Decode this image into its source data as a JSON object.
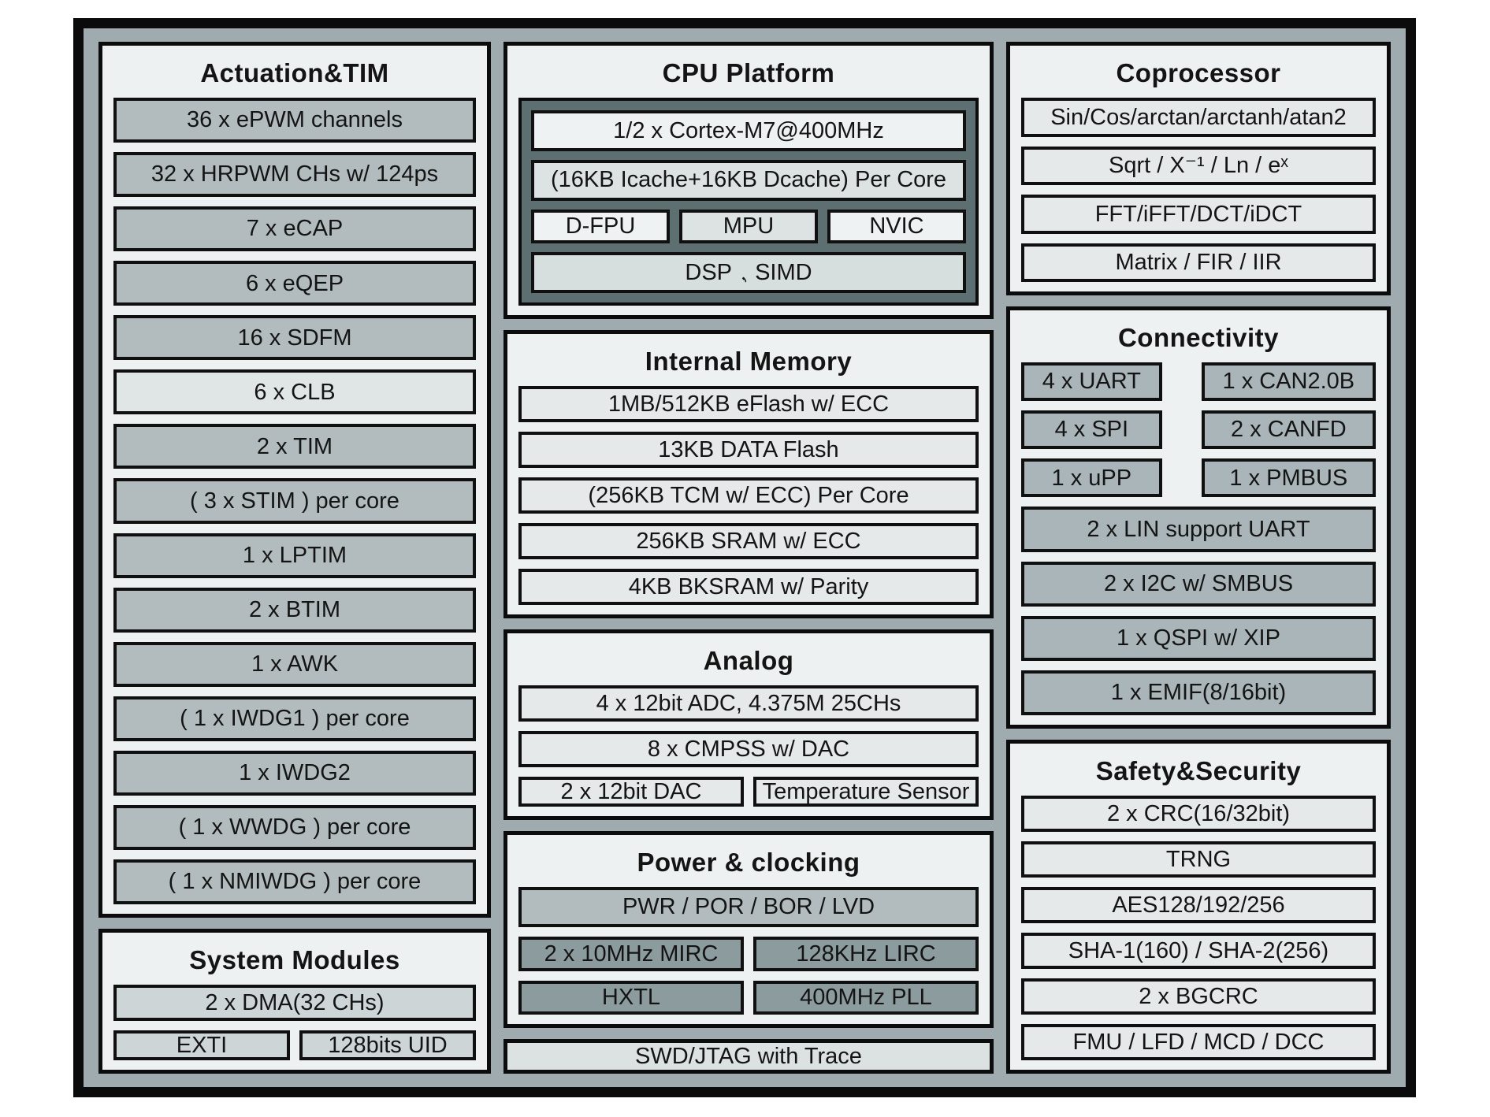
{
  "palette": {
    "chip_frame": "#0b0b0b",
    "chip_band": "#9fabae",
    "section_bg": "#eef1f1",
    "box_medium": "#b2bcbf",
    "box_medium2": "#a9b5b8",
    "box_dark": "#8c9b9e",
    "box_light": "#e5e9e9",
    "box_lighter": "#e0e6e6",
    "box_system": "#cdd5d6",
    "cpu_inner_bg": "#5d6f71",
    "box_bright": "#eff2f2",
    "box_cpulight": "#dde3e3",
    "box_dsp": "#d7dede",
    "box_swd": "#dce1e1",
    "ink": "#141414"
  },
  "sections": {
    "actuation": {
      "title": "Actuation&TIM",
      "items": [
        "36 x ePWM channels",
        "32 x HRPWM CHs w/ 124ps",
        "7 x eCAP",
        "6 x eQEP",
        "16 x SDFM",
        "6 x CLB",
        "2 x TIM",
        "( 3 x STIM ) per core",
        "1 x LPTIM",
        "2 x BTIM",
        "1 x AWK",
        "( 1 x IWDG1 ) per core",
        "1 x IWDG2",
        "( 1 x WWDG ) per core",
        "( 1 x NMIWDG ) per core"
      ]
    },
    "system_modules": {
      "title": "System Modules",
      "dma": "2 x DMA(32 CHs)",
      "exti": "EXTI",
      "uid": "128bits UID"
    },
    "cpu": {
      "title": "CPU Platform",
      "core": "1/2 x Cortex-M7@400MHz",
      "cache": "(16KB Icache+16KB Dcache) Per Core",
      "fpu": "D-FPU",
      "mpu": "MPU",
      "nvic": "NVIC",
      "dsp": "DSP、 SIMD"
    },
    "memory": {
      "title": "Internal Memory",
      "items": [
        "1MB/512KB eFlash w/ ECC",
        "13KB DATA Flash",
        "(256KB TCM w/ ECC) Per Core",
        "256KB SRAM w/ ECC",
        "4KB BKSRAM w/ Parity"
      ]
    },
    "analog": {
      "title": "Analog",
      "adc": "4 x 12bit ADC, 4.375M 25CHs",
      "cmpss": "8 x CMPSS w/ DAC",
      "dac": "2 x 12bit DAC",
      "temp": "Temperature Sensor"
    },
    "power": {
      "title": "Power & clocking",
      "pwr": "PWR / POR / BOR / LVD",
      "mirc": "2 x 10MHz MIRC",
      "lirc": "128KHz LIRC",
      "hxtl": "HXTL",
      "pll": "400MHz PLL"
    },
    "debug": {
      "label": "SWD/JTAG with Trace"
    },
    "coprocessor": {
      "title": "Coprocessor",
      "items": [
        "Sin/Cos/arctan/arctanh/atan2",
        "Sqrt / X⁻¹ / Ln / eˣ",
        "FFT/iFFT/DCT/iDCT",
        "Matrix / FIR / IIR"
      ]
    },
    "connectivity": {
      "title": "Connectivity",
      "pairs": [
        {
          "left": "4 x UART",
          "right": "1 x CAN2.0B"
        },
        {
          "left": "4 x SPI",
          "right": "2 x CANFD"
        },
        {
          "left": "1 x uPP",
          "right": "1 x PMBUS"
        }
      ],
      "rows": [
        "2 x LIN support UART",
        "2 x I2C w/ SMBUS",
        "1 x QSPI w/ XIP",
        "1 x EMIF(8/16bit)"
      ]
    },
    "safety": {
      "title": "Safety&Security",
      "items": [
        "2 x CRC(16/32bit)",
        "TRNG",
        "AES128/192/256",
        "SHA-1(160) / SHA-2(256)",
        "2 x BGCRC",
        "FMU / LFD / MCD / DCC"
      ]
    }
  }
}
